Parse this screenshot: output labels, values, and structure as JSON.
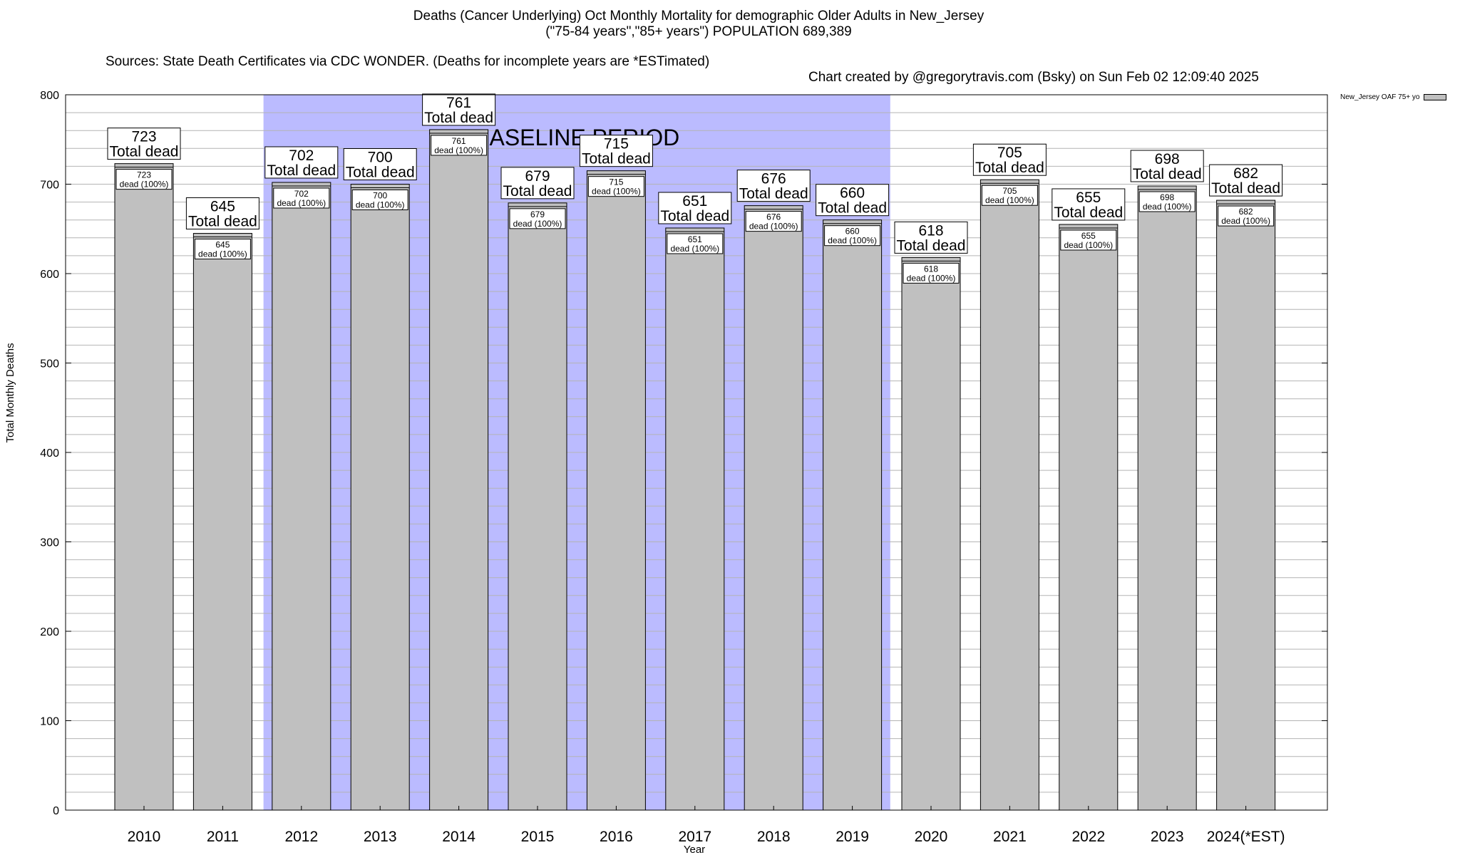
{
  "header": {
    "title_line1": "Deaths (Cancer Underlying) Oct Monthly Mortality for demographic Older Adults in New_Jersey",
    "title_line2": "(\"75-84 years\",\"85+ years\") POPULATION 689,389",
    "sources_left": "Sources: State Death Certificates via CDC WONDER. (Deaths for incomplete years are *ESTimated)",
    "sources_right": "Chart created by @gregorytravis.com (Bsky) on Sun Feb 02 12:09:40 2025"
  },
  "legend": {
    "label": "New_Jersey OAF 75+ yo"
  },
  "chart_data": {
    "type": "bar",
    "xlabel": "Year",
    "ylabel": "Total Monthly Deaths",
    "ylim": [
      0,
      800
    ],
    "yticks": [
      0,
      100,
      200,
      300,
      400,
      500,
      600,
      700,
      800
    ],
    "grid": true,
    "legend_position": "top-right",
    "categories": [
      "2010",
      "2011",
      "2012",
      "2013",
      "2014",
      "2015",
      "2016",
      "2017",
      "2018",
      "2019",
      "2020",
      "2021",
      "2022",
      "2023",
      "2024(*EST)"
    ],
    "series": [
      {
        "name": "New_Jersey OAF 75+ yo",
        "values": [
          723,
          645,
          702,
          700,
          761,
          679,
          715,
          651,
          676,
          660,
          618,
          705,
          655,
          698,
          682
        ]
      }
    ],
    "top_label_suffix": "Total dead",
    "inner_label_suffix": "dead (100%)",
    "baseline_period": {
      "label": "BASELINE PERIOD",
      "start": "2012",
      "end": "2019"
    },
    "colors": {
      "bar": "#c0c0c0",
      "baseline_shade": "#bbbbff",
      "grid": "#b4b4b4"
    }
  }
}
